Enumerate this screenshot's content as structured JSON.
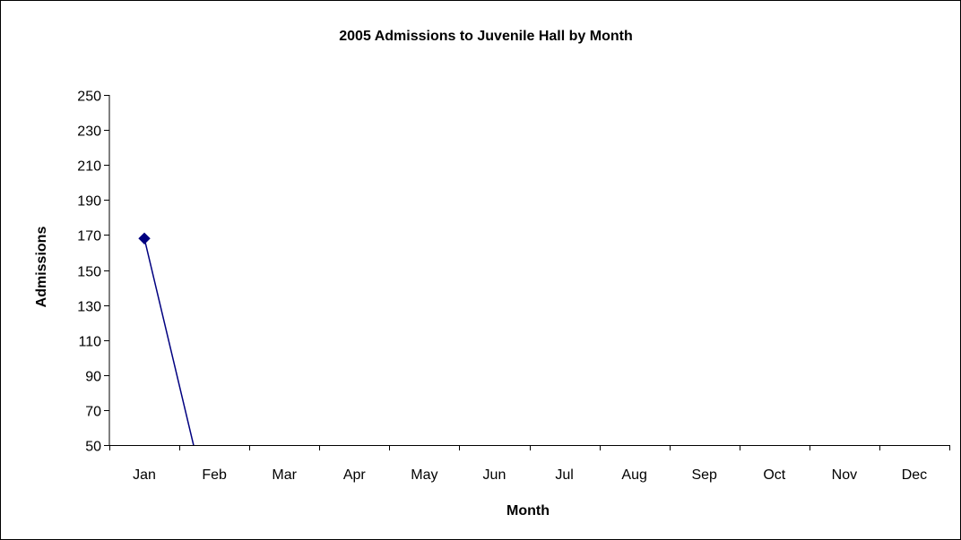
{
  "chart_data": {
    "type": "line",
    "title": "2005 Admissions to Juvenile Hall by Month",
    "xlabel": "Month",
    "ylabel": "Admissions",
    "categories": [
      "Jan",
      "Feb",
      "Mar",
      "Apr",
      "May",
      "Jun",
      "Jul",
      "Aug",
      "Sep",
      "Oct",
      "Nov",
      "Dec"
    ],
    "ylim": [
      50,
      250
    ],
    "yticks": [
      "250",
      "230",
      "210",
      "190",
      "170",
      "150",
      "130",
      "110",
      "90",
      "70",
      "50"
    ],
    "grid": false,
    "legend": "none",
    "series": [
      {
        "values": [
          168,
          0,
          null,
          null,
          null,
          null,
          null,
          null,
          null,
          null,
          null,
          null
        ],
        "color": "#000080",
        "marker": "diamond"
      }
    ]
  }
}
